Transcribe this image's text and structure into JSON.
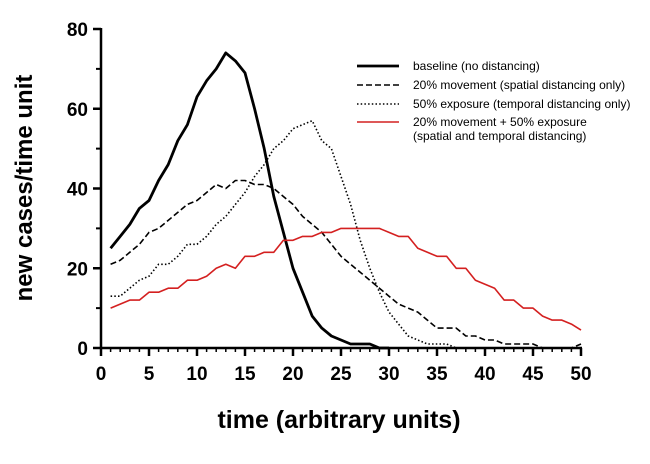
{
  "chart_data": {
    "type": "line",
    "title": "",
    "xlabel": "time (arbitrary units)",
    "ylabel": "new cases/time unit",
    "xlim": [
      0,
      50
    ],
    "ylim": [
      0,
      80
    ],
    "xticks": [
      0,
      5,
      10,
      15,
      20,
      25,
      30,
      35,
      40,
      45,
      50
    ],
    "yticks": [
      0,
      20,
      40,
      60,
      80
    ],
    "grid": false,
    "legend_position": "top-right",
    "series": [
      {
        "name": "baseline (no distancing)",
        "color": "#000000",
        "style": "solid",
        "x": [
          1,
          2,
          3,
          4,
          5,
          6,
          7,
          8,
          9,
          10,
          11,
          12,
          13,
          14,
          15,
          16,
          17,
          18,
          19,
          20,
          21,
          22,
          23,
          24,
          25,
          26,
          27,
          28,
          29,
          30
        ],
        "y": [
          25,
          28,
          31,
          35,
          37,
          42,
          46,
          52,
          56,
          63,
          67,
          70,
          74,
          72,
          69,
          60,
          50,
          38,
          29,
          20,
          14,
          8,
          5,
          3,
          2,
          1,
          1,
          1,
          0,
          0
        ]
      },
      {
        "name": "20% movement (spatial distancing only)",
        "color": "#000000",
        "style": "dashed",
        "x": [
          1,
          2,
          3,
          4,
          5,
          6,
          7,
          8,
          9,
          10,
          11,
          12,
          13,
          14,
          15,
          16,
          17,
          18,
          19,
          20,
          21,
          22,
          23,
          24,
          25,
          26,
          27,
          28,
          29,
          30,
          31,
          32,
          33,
          34,
          35,
          36,
          37,
          38,
          39,
          40,
          41,
          42,
          43,
          44,
          45,
          46,
          47,
          48,
          49,
          50
        ],
        "y": [
          21,
          22,
          24,
          26,
          29,
          30,
          32,
          34,
          36,
          37,
          39,
          41,
          40,
          42,
          42,
          41,
          41,
          40,
          38,
          36,
          33,
          31,
          29,
          26,
          23,
          21,
          19,
          17,
          15,
          13,
          11,
          10,
          9,
          7,
          5,
          5,
          5,
          3,
          3,
          2,
          2,
          1,
          1,
          1,
          1,
          0,
          0,
          0,
          0,
          1
        ]
      },
      {
        "name": "50% exposure (temporal distancing only)",
        "color": "#000000",
        "style": "dotted",
        "x": [
          1,
          2,
          3,
          4,
          5,
          6,
          7,
          8,
          9,
          10,
          11,
          12,
          13,
          14,
          15,
          16,
          17,
          18,
          19,
          20,
          21,
          22,
          23,
          24,
          25,
          26,
          27,
          28,
          29,
          30,
          31,
          32,
          33,
          34,
          35,
          36,
          37,
          38,
          39,
          40
        ],
        "y": [
          13,
          13,
          15,
          17,
          18,
          21,
          21,
          23,
          26,
          26,
          28,
          31,
          33,
          36,
          39,
          43,
          46,
          50,
          52,
          55,
          56,
          57,
          52,
          50,
          43,
          36,
          27,
          20,
          14,
          9,
          6,
          3,
          2,
          1,
          1,
          1,
          0,
          0,
          0,
          0
        ]
      },
      {
        "name": "20% movement + 50% exposure (spatial and temporal distancing)",
        "legend_lines": [
          "20% movement + 50% exposure",
          "(spatial and temporal distancing)"
        ],
        "color": "#d42020",
        "style": "solid",
        "x": [
          1,
          2,
          3,
          4,
          5,
          6,
          7,
          8,
          9,
          10,
          11,
          12,
          13,
          14,
          15,
          16,
          17,
          18,
          19,
          20,
          21,
          22,
          23,
          24,
          25,
          26,
          27,
          28,
          29,
          30,
          31,
          32,
          33,
          34,
          35,
          36,
          37,
          38,
          39,
          40,
          41,
          42,
          43,
          44,
          45,
          46,
          47,
          48,
          49,
          50
        ],
        "y": [
          10,
          11,
          12,
          12,
          14,
          14,
          15,
          15,
          17,
          17,
          18,
          20,
          21,
          20,
          23,
          23,
          24,
          24,
          27,
          27,
          28,
          28,
          29,
          29,
          30,
          30,
          30,
          30,
          30,
          29,
          28,
          28,
          25,
          24,
          23,
          23,
          20,
          20,
          17,
          16,
          15,
          12,
          12,
          10,
          10,
          8,
          7,
          7,
          6,
          4.5
        ]
      }
    ]
  }
}
